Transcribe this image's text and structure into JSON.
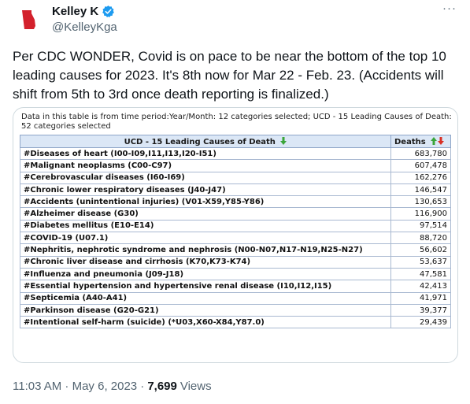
{
  "author": {
    "display_name": "Kelley K",
    "handle": "@KelleyKga",
    "avatar_icon": "georgia-state-icon",
    "verified_icon": "verified-badge-icon"
  },
  "more_label": "···",
  "tweet_text": "Per CDC WONDER, Covid is on pace to be near the bottom of the top 10 leading causes for 2023. It's 8th now for Mar 22 - Feb. 23. (Accidents will shift from 5th to 3rd once death reporting is finalized.)",
  "table": {
    "note": "Data in this table is from time period:Year/Month: 12 categories selected; UCD - 15 Leading Causes of Death: 52 categories selected",
    "headers": {
      "cause": "UCD - 15 Leading Causes of Death",
      "deaths": "Deaths"
    },
    "rows": [
      {
        "cause": "#Diseases of heart (I00-I09,I11,I13,I20-I51)",
        "deaths": "683,780"
      },
      {
        "cause": "#Malignant neoplasms (C00-C97)",
        "deaths": "607,478"
      },
      {
        "cause": "#Cerebrovascular diseases (I60-I69)",
        "deaths": "162,276"
      },
      {
        "cause": "#Chronic lower respiratory diseases (J40-J47)",
        "deaths": "146,547"
      },
      {
        "cause": "#Accidents (unintentional injuries) (V01-X59,Y85-Y86)",
        "deaths": "130,653"
      },
      {
        "cause": "#Alzheimer disease (G30)",
        "deaths": "116,900"
      },
      {
        "cause": "#Diabetes mellitus (E10-E14)",
        "deaths": "97,514"
      },
      {
        "cause": "#COVID-19 (U07.1)",
        "deaths": "88,720"
      },
      {
        "cause": "#Nephritis, nephrotic syndrome and nephrosis (N00-N07,N17-N19,N25-N27)",
        "deaths": "56,602"
      },
      {
        "cause": "#Chronic liver disease and cirrhosis (K70,K73-K74)",
        "deaths": "53,637"
      },
      {
        "cause": "#Influenza and pneumonia (J09-J18)",
        "deaths": "47,581"
      },
      {
        "cause": "#Essential hypertension and hypertensive renal disease (I10,I12,I15)",
        "deaths": "42,413"
      },
      {
        "cause": "#Septicemia (A40-A41)",
        "deaths": "41,971"
      },
      {
        "cause": "#Parkinson disease (G20-G21)",
        "deaths": "39,377"
      },
      {
        "cause": "#Intentional self-harm (suicide) (*U03,X60-X84,Y87.0)",
        "deaths": "29,439"
      }
    ]
  },
  "footer": {
    "timestamp": "11:03 AM · May 6, 2023 ·",
    "views_count": "7,699",
    "views_label": "Views"
  },
  "colors": {
    "avatar_red": "#d3212c",
    "verified_blue": "#1d9bf0",
    "sort_up_green": "#3aa53a",
    "sort_down_red": "#d93025",
    "header_bg": "#dbe7f6"
  }
}
